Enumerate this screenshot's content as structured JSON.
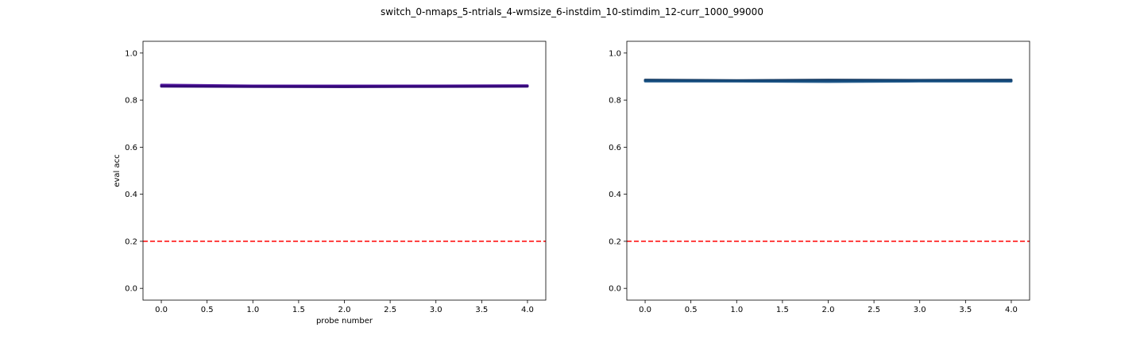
{
  "figure": {
    "suptitle": "switch_0-nmaps_5-ntrials_4-wmsize_6-instdim_10-stimdim_12-curr_1000_99000"
  },
  "chart_data": [
    {
      "type": "line",
      "title": "",
      "xlabel": "probe number",
      "ylabel": "eval acc",
      "xlim": [
        -0.2,
        4.2
      ],
      "ylim": [
        -0.05,
        1.05
      ],
      "xticks": [
        0.0,
        0.5,
        1.0,
        1.5,
        2.0,
        2.5,
        3.0,
        3.5,
        4.0
      ],
      "yticks": [
        0.0,
        0.2,
        0.4,
        0.6,
        0.8,
        1.0
      ],
      "xtick_labels": [
        "0.0",
        "0.5",
        "1.0",
        "1.5",
        "2.0",
        "2.5",
        "3.0",
        "3.5",
        "4.0"
      ],
      "ytick_labels": [
        "0.0",
        "0.2",
        "0.4",
        "0.6",
        "0.8",
        "1.0"
      ],
      "grid": false,
      "series": [
        {
          "x": [
            0,
            1,
            2,
            3,
            4
          ],
          "values": [
            0.862,
            0.86,
            0.859,
            0.86,
            0.861
          ],
          "color": "#3b0a8a"
        },
        {
          "x": [
            0,
            1,
            2,
            3,
            4
          ],
          "values": [
            0.86,
            0.858,
            0.858,
            0.859,
            0.859
          ],
          "color": "#2a0a7a"
        },
        {
          "x": [
            0,
            1,
            2,
            3,
            4
          ],
          "values": [
            0.865,
            0.861,
            0.861,
            0.861,
            0.862
          ],
          "color": "#4b0c9a"
        },
        {
          "x": [
            0,
            1,
            2,
            3,
            4
          ],
          "values": [
            0.858,
            0.857,
            0.856,
            0.857,
            0.858
          ],
          "color": "#310873"
        }
      ],
      "reference_line": {
        "y": 0.2,
        "color": "#ff0000",
        "style": "dashed"
      }
    },
    {
      "type": "line",
      "title": "",
      "xlabel": "",
      "ylabel": "",
      "xlim": [
        -0.2,
        4.2
      ],
      "ylim": [
        -0.05,
        1.05
      ],
      "xticks": [
        0.0,
        0.5,
        1.0,
        1.5,
        2.0,
        2.5,
        3.0,
        3.5,
        4.0
      ],
      "yticks": [
        0.0,
        0.2,
        0.4,
        0.6,
        0.8,
        1.0
      ],
      "xtick_labels": [
        "0.0",
        "0.5",
        "1.0",
        "1.5",
        "2.0",
        "2.5",
        "3.0",
        "3.5",
        "4.0"
      ],
      "ytick_labels": [
        "0.0",
        "0.2",
        "0.4",
        "0.6",
        "0.8",
        "1.0"
      ],
      "grid": false,
      "series": [
        {
          "x": [
            0,
            1,
            2,
            3,
            4
          ],
          "values": [
            0.884,
            0.882,
            0.883,
            0.883,
            0.883
          ],
          "color": "#0d3b66"
        },
        {
          "x": [
            0,
            1,
            2,
            3,
            4
          ],
          "values": [
            0.88,
            0.88,
            0.878,
            0.88,
            0.88
          ],
          "color": "#14528a"
        },
        {
          "x": [
            0,
            1,
            2,
            3,
            4
          ],
          "values": [
            0.886,
            0.884,
            0.886,
            0.885,
            0.886
          ],
          "color": "#0a2d55"
        },
        {
          "x": [
            0,
            1,
            2,
            3,
            4
          ],
          "values": [
            0.882,
            0.881,
            0.881,
            0.882,
            0.881
          ],
          "color": "#174f7f"
        }
      ],
      "reference_line": {
        "y": 0.2,
        "color": "#ff0000",
        "style": "dashed"
      }
    }
  ]
}
